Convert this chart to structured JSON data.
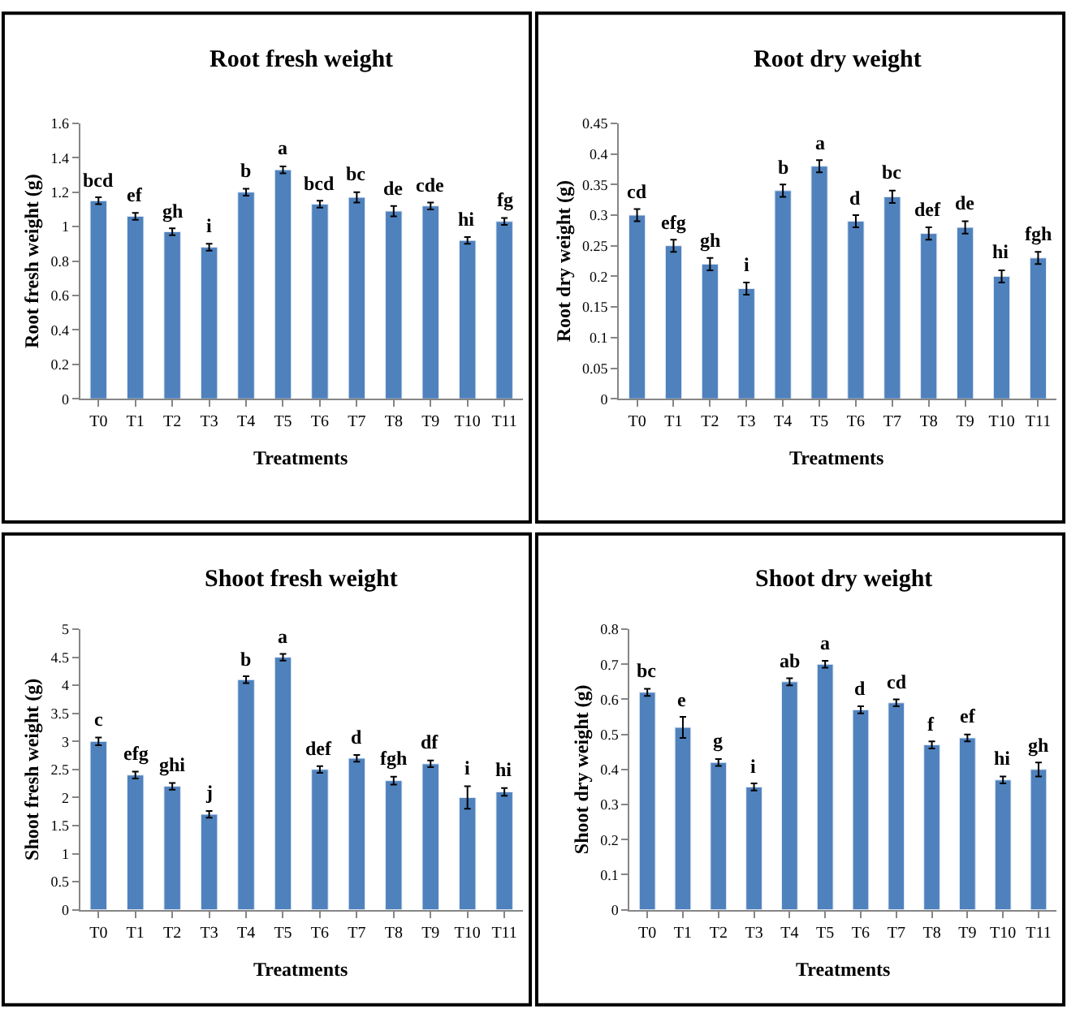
{
  "chart_data": [
    {
      "type": "bar",
      "title": "Root fresh weight",
      "xlabel": "Treatments",
      "ylabel": "Root fresh weight (g)",
      "categories": [
        "T0",
        "T1",
        "T2",
        "T3",
        "T4",
        "T5",
        "T6",
        "T7",
        "T8",
        "T9",
        "T10",
        "T11"
      ],
      "color": "#4f81bd",
      "values": [
        1.15,
        1.06,
        0.97,
        0.88,
        1.2,
        1.33,
        1.13,
        1.17,
        1.09,
        1.12,
        0.92,
        1.03
      ],
      "errors": [
        0.02,
        0.02,
        0.02,
        0.02,
        0.02,
        0.02,
        0.02,
        0.03,
        0.03,
        0.02,
        0.02,
        0.02
      ],
      "ylim": [
        0,
        1.6
      ],
      "yticks": [
        0,
        0.2,
        0.4,
        0.6,
        0.8,
        1,
        1.2,
        1.4,
        1.6
      ],
      "annotations": [
        {
          "text": "bcd",
          "x": "T0",
          "y": 1.17
        },
        {
          "text": "ef",
          "x": "T1",
          "y": 1.08
        },
        {
          "text": "gh",
          "x": "T2",
          "y": 0.99
        },
        {
          "text": "i",
          "x": "T3",
          "y": 0.9
        },
        {
          "text": "b",
          "x": "T4",
          "y": 1.22
        },
        {
          "text": "a",
          "x": "T5",
          "y": 1.35
        },
        {
          "text": "bcd",
          "x": "T6",
          "y": 1.15
        },
        {
          "text": "bc",
          "x": "T7",
          "y": 1.2
        },
        {
          "text": "de",
          "x": "T8",
          "y": 1.12
        },
        {
          "text": "cde",
          "x": "T9",
          "y": 1.14
        },
        {
          "text": "hi",
          "x": "T10",
          "y": 0.94
        },
        {
          "text": "fg",
          "x": "T11",
          "y": 1.05
        }
      ]
    },
    {
      "type": "bar",
      "title": "Root dry weight",
      "xlabel": "Treatments",
      "ylabel": "Root dry weight (g)",
      "categories": [
        "T0",
        "T1",
        "T2",
        "T3",
        "T4",
        "T5",
        "T6",
        "T7",
        "T8",
        "T9",
        "T10",
        "T11"
      ],
      "color": "#4f81bd",
      "values": [
        0.3,
        0.25,
        0.22,
        0.18,
        0.34,
        0.38,
        0.29,
        0.33,
        0.27,
        0.28,
        0.2,
        0.23
      ],
      "errors": [
        0.01,
        0.01,
        0.01,
        0.01,
        0.01,
        0.01,
        0.01,
        0.01,
        0.01,
        0.01,
        0.01,
        0.01
      ],
      "ylim": [
        0,
        0.45
      ],
      "yticks": [
        0,
        0.05,
        0.1,
        0.15,
        0.2,
        0.25,
        0.3,
        0.35,
        0.4,
        0.45
      ],
      "annotations": [
        {
          "text": "cd",
          "x": "T0",
          "y": 0.31
        },
        {
          "text": "efg",
          "x": "T1",
          "y": 0.26
        },
        {
          "text": "gh",
          "x": "T2",
          "y": 0.23
        },
        {
          "text": "i",
          "x": "T3",
          "y": 0.19
        },
        {
          "text": "b",
          "x": "T4",
          "y": 0.35
        },
        {
          "text": "a",
          "x": "T5",
          "y": 0.39
        },
        {
          "text": "d",
          "x": "T6",
          "y": 0.3
        },
        {
          "text": "bc",
          "x": "T7",
          "y": 0.34
        },
        {
          "text": "def",
          "x": "T8",
          "y": 0.28
        },
        {
          "text": "de",
          "x": "T9",
          "y": 0.29
        },
        {
          "text": "hi",
          "x": "T10",
          "y": 0.21
        },
        {
          "text": "fgh",
          "x": "T11",
          "y": 0.24
        }
      ]
    },
    {
      "type": "bar",
      "title": "Shoot fresh weight",
      "xlabel": "Treatments",
      "ylabel": "Shoot fresh weight (g)",
      "categories": [
        "T0",
        "T1",
        "T2",
        "T3",
        "T4",
        "T5",
        "T6",
        "T7",
        "T8",
        "T9",
        "T10",
        "T11"
      ],
      "color": "#4f81bd",
      "values": [
        3.0,
        2.4,
        2.2,
        1.7,
        4.1,
        4.5,
        2.5,
        2.7,
        2.3,
        2.6,
        2.0,
        2.1
      ],
      "errors": [
        0.07,
        0.06,
        0.06,
        0.06,
        0.06,
        0.06,
        0.06,
        0.06,
        0.07,
        0.06,
        0.2,
        0.07
      ],
      "ylim": [
        0,
        5
      ],
      "yticks": [
        0,
        0.5,
        1,
        1.5,
        2,
        2.5,
        3,
        3.5,
        4,
        4.5,
        5
      ],
      "annotations": [
        {
          "text": "c",
          "x": "T0",
          "y": 3.07
        },
        {
          "text": "efg",
          "x": "T1",
          "y": 2.46
        },
        {
          "text": "ghi",
          "x": "T2",
          "y": 2.26
        },
        {
          "text": "j",
          "x": "T3",
          "y": 1.76
        },
        {
          "text": "b",
          "x": "T4",
          "y": 4.16
        },
        {
          "text": "a",
          "x": "T5",
          "y": 4.56
        },
        {
          "text": "def",
          "x": "T6",
          "y": 2.56
        },
        {
          "text": "d",
          "x": "T7",
          "y": 2.76
        },
        {
          "text": "fgh",
          "x": "T8",
          "y": 2.37
        },
        {
          "text": "df",
          "x": "T9",
          "y": 2.66
        },
        {
          "text": "i",
          "x": "T10",
          "y": 2.2
        },
        {
          "text": "hi",
          "x": "T11",
          "y": 2.17
        }
      ]
    },
    {
      "type": "bar",
      "title": "Shoot dry weight",
      "xlabel": "Treatments",
      "ylabel": "Shoot dry weight (g)",
      "categories": [
        "T0",
        "T1",
        "T2",
        "T3",
        "T4",
        "T5",
        "T6",
        "T7",
        "T8",
        "T9",
        "T10",
        "T11"
      ],
      "color": "#4f81bd",
      "values": [
        0.62,
        0.52,
        0.42,
        0.35,
        0.65,
        0.7,
        0.57,
        0.59,
        0.47,
        0.49,
        0.37,
        0.4
      ],
      "errors": [
        0.01,
        0.03,
        0.01,
        0.01,
        0.01,
        0.01,
        0.01,
        0.01,
        0.01,
        0.01,
        0.01,
        0.02
      ],
      "ylim": [
        0,
        0.8
      ],
      "yticks": [
        0,
        0.1,
        0.2,
        0.3,
        0.4,
        0.5,
        0.6,
        0.7,
        0.8
      ],
      "annotations": [
        {
          "text": "bc",
          "x": "T0",
          "y": 0.63
        },
        {
          "text": "e",
          "x": "T1",
          "y": 0.55
        },
        {
          "text": "g",
          "x": "T2",
          "y": 0.43
        },
        {
          "text": "i",
          "x": "T3",
          "y": 0.36
        },
        {
          "text": "ab",
          "x": "T4",
          "y": 0.66
        },
        {
          "text": "a",
          "x": "T5",
          "y": 0.71
        },
        {
          "text": "d",
          "x": "T6",
          "y": 0.58
        },
        {
          "text": "cd",
          "x": "T7",
          "y": 0.6
        },
        {
          "text": "f",
          "x": "T8",
          "y": 0.48
        },
        {
          "text": "ef",
          "x": "T9",
          "y": 0.5
        },
        {
          "text": "hi",
          "x": "T10",
          "y": 0.38
        },
        {
          "text": "gh",
          "x": "T11",
          "y": 0.42
        }
      ]
    }
  ]
}
